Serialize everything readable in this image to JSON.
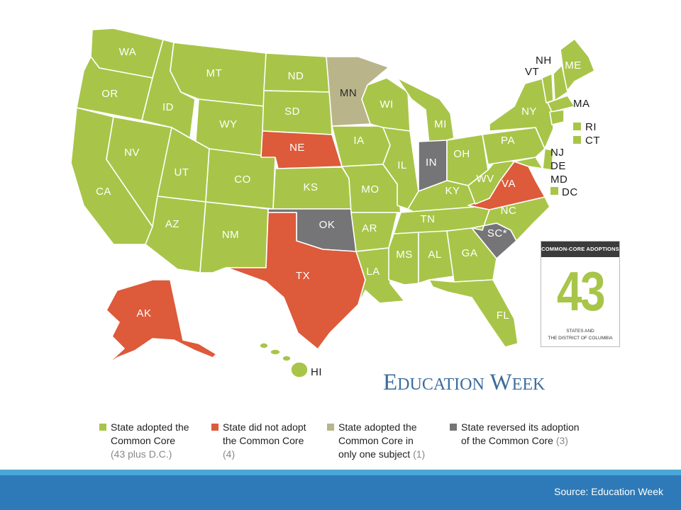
{
  "states": {
    "WA": "WA",
    "OR": "OR",
    "CA": "CA",
    "NV": "NV",
    "ID": "ID",
    "MT": "MT",
    "WY": "WY",
    "UT": "UT",
    "AZ": "AZ",
    "CO": "CO",
    "NM": "NM",
    "ND": "ND",
    "SD": "SD",
    "NE": "NE",
    "KS": "KS",
    "OK": "OK",
    "TX": "TX",
    "MN": "MN",
    "IA": "IA",
    "MO": "MO",
    "AR": "AR",
    "LA": "LA",
    "WI": "WI",
    "IL": "IL",
    "MI": "MI",
    "IN": "IN",
    "OH": "OH",
    "KY": "KY",
    "TN": "TN",
    "MS": "MS",
    "AL": "AL",
    "GA": "GA",
    "FL": "FL",
    "SC": "SC*",
    "NC": "NC",
    "VA": "VA",
    "WV": "WV",
    "PA": "PA",
    "NY": "NY",
    "ME": "ME",
    "AK": "AK",
    "HI": "HI",
    "NH": "NH",
    "VT": "VT",
    "MA": "MA",
    "RI": "RI",
    "CT": "CT",
    "NJ": "NJ",
    "DE": "DE",
    "MD": "MD",
    "DC": "DC"
  },
  "status_colors": {
    "adopted": "#a8c549",
    "not_adopted": "#dd5a3a",
    "one_subject": "#b9b48a",
    "reversed": "#757578"
  },
  "adoptions_box": {
    "title": "COMMON-CORE ADOPTIONS",
    "number": "43",
    "subtitle_line1": "STATES AND",
    "subtitle_line2": "THE DISTRICT OF COLUMBIA"
  },
  "brand": {
    "e": "E",
    "ducation": "DUCATION",
    "w": " W",
    "eek": "EEK"
  },
  "legend": {
    "adopted": {
      "label": "State adopted the Common Core",
      "count": "(43 plus D.C.)"
    },
    "not_adopted": {
      "label": "State did not adopt the Common Core",
      "count": "(4)"
    },
    "one_subject": {
      "label": "State adopted the Common Core in only one subject",
      "count": "(1)"
    },
    "reversed": {
      "label": "State reversed its adoption of the Common Core",
      "count": "(3)"
    }
  },
  "footer": {
    "source": "Source: Education Week"
  }
}
